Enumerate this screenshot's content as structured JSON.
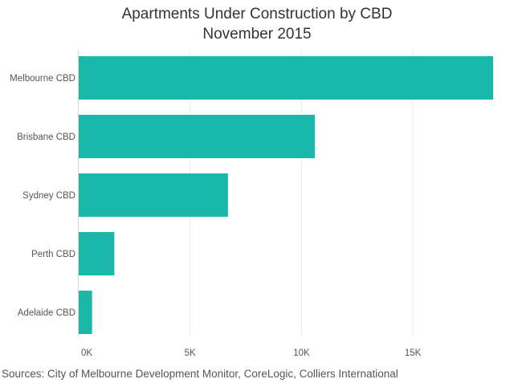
{
  "chart_data": {
    "type": "bar",
    "orientation": "horizontal",
    "title": "Apartments Under Construction by CBD",
    "subtitle": "November 2015",
    "categories": [
      "Melbourne CBD",
      "Brisbane CBD",
      "Sydney CBD",
      "Perth CBD",
      "Adelaide CBD"
    ],
    "values": [
      18600,
      10600,
      6700,
      1600,
      600
    ],
    "xlim": [
      0,
      18600
    ],
    "x_ticks": [
      0,
      5000,
      10000,
      15000
    ],
    "x_tick_labels": [
      "0K",
      "5K",
      "10K",
      "15K"
    ],
    "xlabel": "",
    "ylabel": "",
    "grid": "vertical",
    "legend": "none",
    "bar_color": "#1ab8ab"
  },
  "source": "Sources: City of Melbourne Development Monitor, CoreLogic, Colliers International"
}
